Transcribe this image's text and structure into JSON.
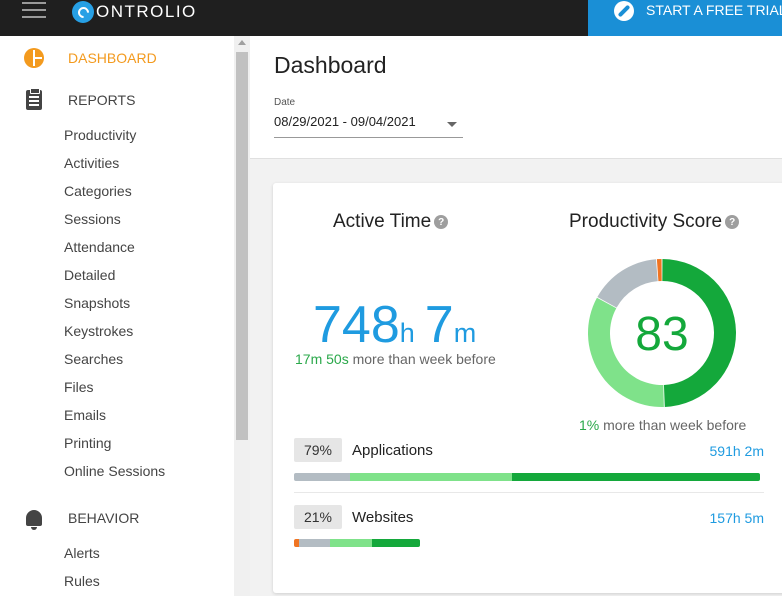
{
  "header": {
    "logo_text": "ONTROLIO",
    "trial_button": "START A FREE TRIAL"
  },
  "sidebar": {
    "sections": [
      {
        "label": "DASHBOARD",
        "icon": "dashboard-icon",
        "active": true
      },
      {
        "label": "REPORTS",
        "icon": "clipboard-icon",
        "active": false
      },
      {
        "label": "BEHAVIOR",
        "icon": "bell-icon",
        "active": false
      }
    ],
    "report_items": [
      "Productivity",
      "Activities",
      "Categories",
      "Sessions",
      "Attendance",
      "Detailed",
      "Snapshots",
      "Keystrokes",
      "Searches",
      "Files",
      "Emails",
      "Printing",
      "Online Sessions"
    ],
    "behavior_items": [
      "Alerts",
      "Rules"
    ]
  },
  "main": {
    "title": "Dashboard",
    "date_label": "Date",
    "date_value": "08/29/2021 - 09/04/2021"
  },
  "active_time": {
    "title": "Active Time",
    "hours": "748",
    "hours_unit": "h",
    "minutes": "7",
    "minutes_unit": "m",
    "compare_value": "17m 50s",
    "compare_text": "more than week before"
  },
  "productivity": {
    "title": "Productivity Score",
    "score": "83",
    "compare_value": "1%",
    "compare_text": "more than week before",
    "segments": [
      {
        "name": "productive",
        "fraction": 0.495,
        "color": "#14a83b"
      },
      {
        "name": "neutral-productive",
        "fraction": 0.335,
        "color": "#7fe28a"
      },
      {
        "name": "neutral",
        "fraction": 0.158,
        "color": "#b3bcc3"
      },
      {
        "name": "unproductive",
        "fraction": 0.012,
        "color": "#f07422"
      }
    ]
  },
  "breakdown": {
    "applications": {
      "percent": "79%",
      "label": "Applications",
      "time": "591h 2m",
      "fill": 1.0,
      "segments": [
        {
          "fraction": 0.121,
          "color": "#b3bcc3"
        },
        {
          "fraction": 0.346,
          "color": "#7fe28a"
        },
        {
          "fraction": 0.533,
          "color": "#14a83b"
        }
      ]
    },
    "websites": {
      "percent": "21%",
      "label": "Websites",
      "time": "157h 5m",
      "fill": 0.27,
      "segments": [
        {
          "fraction": 0.039,
          "color": "#f07422"
        },
        {
          "fraction": 0.244,
          "color": "#b3bcc3"
        },
        {
          "fraction": 0.339,
          "color": "#7fe28a"
        },
        {
          "fraction": 0.378,
          "color": "#14a83b"
        }
      ]
    }
  }
}
